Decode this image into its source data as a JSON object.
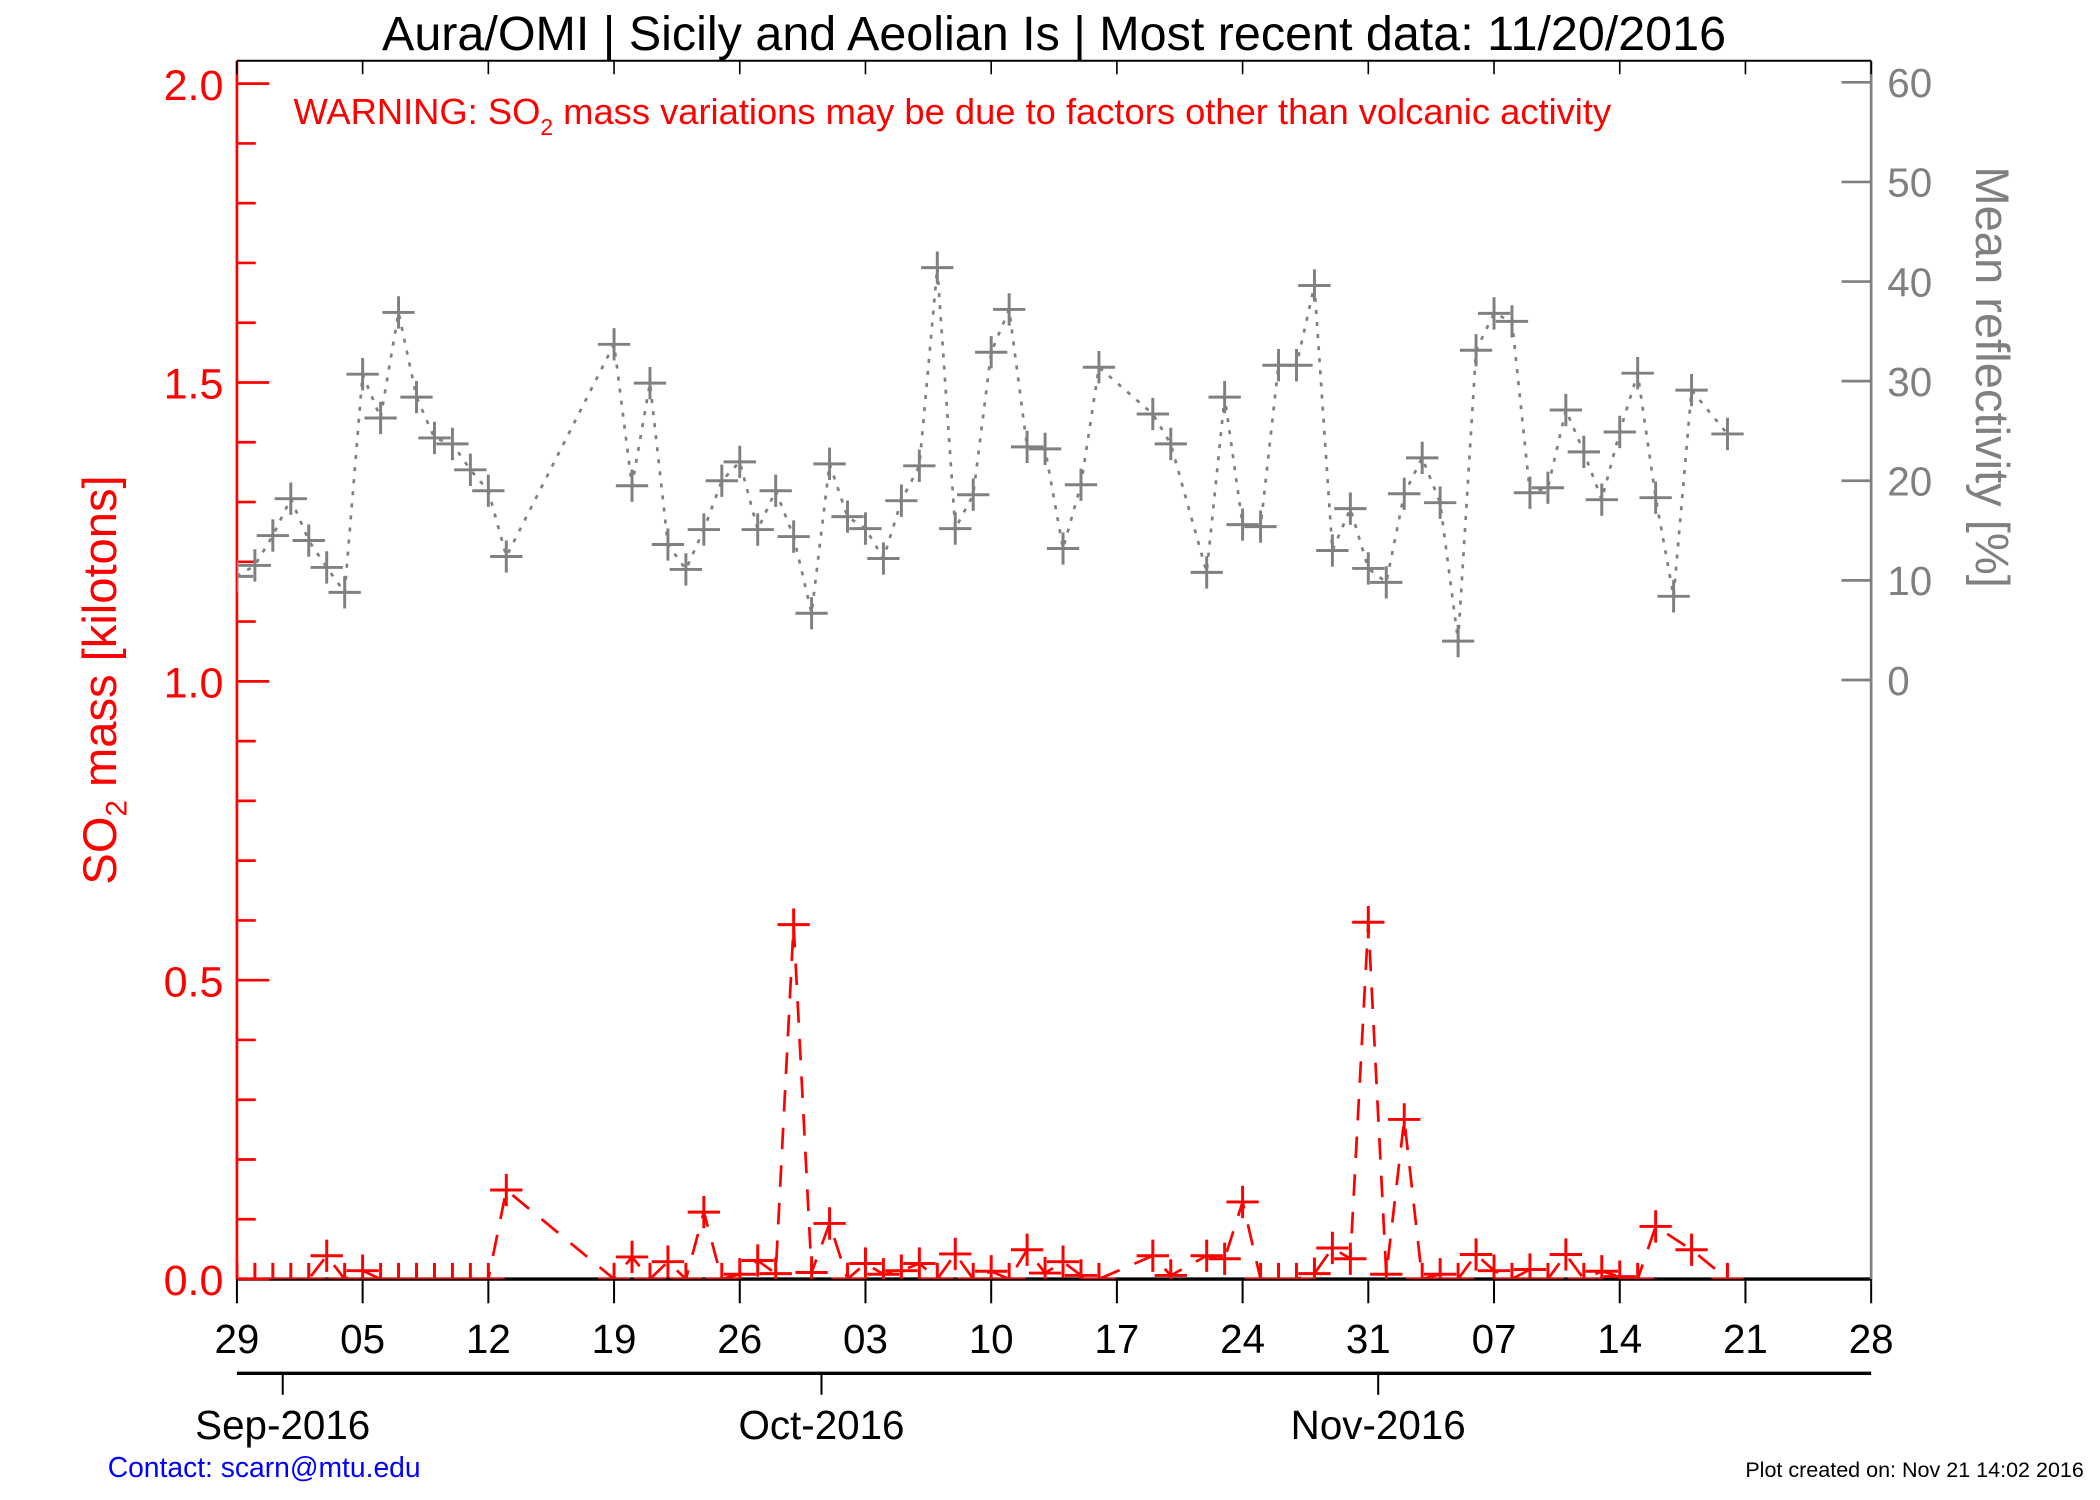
{
  "chart_data": {
    "type": "line",
    "title": "Aura/OMI | Sicily and Aeolian Is | Most recent data: 11/20/2016",
    "warning": {
      "prefix": "WARNING: SO",
      "sub": "2",
      "suffix": " mass variations may be due to factors other than volcanic activity"
    },
    "ylabel_left": {
      "prefix": "SO",
      "sub": "2",
      "suffix": " mass [kilotons]"
    },
    "ylabel_right": "Mean reflectivity [%]",
    "xlim": [
      "2016-08-29",
      "2016-11-28"
    ],
    "ylim_left": [
      0,
      2.0
    ],
    "ylim_right": [
      0,
      60
    ],
    "left_ticks": [
      "0.0",
      "0.5",
      "1.0",
      "1.5",
      "2.0"
    ],
    "left_tick_values": [
      0,
      0.5,
      1.0,
      1.5,
      2.0
    ],
    "right_ticks": [
      "0",
      "10",
      "20",
      "30",
      "40",
      "50",
      "60"
    ],
    "right_tick_values": [
      0,
      10,
      20,
      30,
      40,
      50,
      60
    ],
    "x_ticks": [
      {
        "date": "2016-08-29",
        "label": "29"
      },
      {
        "date": "2016-09-05",
        "label": "05"
      },
      {
        "date": "2016-09-12",
        "label": "12"
      },
      {
        "date": "2016-09-19",
        "label": "19"
      },
      {
        "date": "2016-09-26",
        "label": "26"
      },
      {
        "date": "2016-10-03",
        "label": "03"
      },
      {
        "date": "2016-10-10",
        "label": "10"
      },
      {
        "date": "2016-10-17",
        "label": "17"
      },
      {
        "date": "2016-10-24",
        "label": "24"
      },
      {
        "date": "2016-10-31",
        "label": "31"
      },
      {
        "date": "2016-11-07",
        "label": "07"
      },
      {
        "date": "2016-11-14",
        "label": "14"
      },
      {
        "date": "2016-11-21",
        "label": "21"
      },
      {
        "date": "2016-11-28",
        "label": "28"
      }
    ],
    "month_ticks": [
      {
        "date": "2016-09-01",
        "label": "Sep-2016"
      },
      {
        "date": "2016-10-01",
        "label": "Oct-2016"
      },
      {
        "date": "2016-11-01",
        "label": "Nov-2016"
      }
    ],
    "series": [
      {
        "name": "SO2 mass [kilotons]",
        "axis": "left",
        "color": "#ff0000",
        "line": "dashed",
        "marker": "plus",
        "points": [
          [
            "2016-08-29",
            0
          ],
          [
            "2016-08-30",
            0
          ],
          [
            "2016-08-31",
            0
          ],
          [
            "2016-09-01",
            0
          ],
          [
            "2016-09-02",
            0
          ],
          [
            "2016-09-03",
            0.039
          ],
          [
            "2016-09-04",
            0
          ],
          [
            "2016-09-05",
            0.014
          ],
          [
            "2016-09-06",
            0
          ],
          [
            "2016-09-07",
            0
          ],
          [
            "2016-09-08",
            0
          ],
          [
            "2016-09-09",
            0
          ],
          [
            "2016-09-10",
            0
          ],
          [
            "2016-09-11",
            0
          ],
          [
            "2016-09-12",
            0
          ],
          [
            "2016-09-13",
            0.149
          ],
          [
            "2016-09-19",
            0
          ],
          [
            "2016-09-20",
            0.037
          ],
          [
            "2016-09-21",
            0
          ],
          [
            "2016-09-22",
            0.029
          ],
          [
            "2016-09-23",
            0
          ],
          [
            "2016-09-24",
            0.112
          ],
          [
            "2016-09-25",
            0
          ],
          [
            "2016-09-26",
            0.008
          ],
          [
            "2016-09-27",
            0.031
          ],
          [
            "2016-09-28",
            0.009
          ],
          [
            "2016-09-29",
            0.593
          ],
          [
            "2016-09-30",
            0.011
          ],
          [
            "2016-10-01",
            0.093
          ],
          [
            "2016-10-02",
            0
          ],
          [
            "2016-10-03",
            0.026
          ],
          [
            "2016-10-04",
            0.008
          ],
          [
            "2016-10-05",
            0.014
          ],
          [
            "2016-10-06",
            0.026
          ],
          [
            "2016-10-07",
            0
          ],
          [
            "2016-10-08",
            0.042
          ],
          [
            "2016-10-09",
            0
          ],
          [
            "2016-10-10",
            0.013
          ],
          [
            "2016-10-11",
            0
          ],
          [
            "2016-10-12",
            0.049
          ],
          [
            "2016-10-13",
            0.01
          ],
          [
            "2016-10-14",
            0.029
          ],
          [
            "2016-10-15",
            0.006
          ],
          [
            "2016-10-16",
            0
          ],
          [
            "2016-10-19",
            0.039
          ],
          [
            "2016-10-20",
            0.006
          ],
          [
            "2016-10-22",
            0.039
          ],
          [
            "2016-10-23",
            0.034
          ],
          [
            "2016-10-24",
            0.129
          ],
          [
            "2016-10-25",
            0
          ],
          [
            "2016-10-26",
            0
          ],
          [
            "2016-10-27",
            0
          ],
          [
            "2016-10-28",
            0.009
          ],
          [
            "2016-10-29",
            0.052
          ],
          [
            "2016-10-30",
            0.034
          ],
          [
            "2016-10-31",
            0.597
          ],
          [
            "2016-11-01",
            0.008
          ],
          [
            "2016-11-02",
            0.267
          ],
          [
            "2016-11-03",
            0
          ],
          [
            "2016-11-04",
            0.008
          ],
          [
            "2016-11-05",
            0
          ],
          [
            "2016-11-06",
            0.041
          ],
          [
            "2016-11-07",
            0.014
          ],
          [
            "2016-11-08",
            0
          ],
          [
            "2016-11-09",
            0.016
          ],
          [
            "2016-11-10",
            0
          ],
          [
            "2016-11-11",
            0.041
          ],
          [
            "2016-11-12",
            0
          ],
          [
            "2016-11-13",
            0.013
          ],
          [
            "2016-11-14",
            0.004
          ],
          [
            "2016-11-15",
            0
          ],
          [
            "2016-11-16",
            0.088
          ],
          [
            "2016-11-18",
            0.049
          ],
          [
            "2016-11-20",
            0
          ]
        ]
      },
      {
        "name": "Mean reflectivity [%]",
        "axis": "right",
        "color": "#808080",
        "line": "dotted",
        "marker": "plus",
        "points": [
          [
            "2016-08-29",
            10.4
          ],
          [
            "2016-08-30",
            11.5
          ],
          [
            "2016-08-31",
            14.5
          ],
          [
            "2016-09-01",
            18.2
          ],
          [
            "2016-09-02",
            14.0
          ],
          [
            "2016-09-03",
            11.3
          ],
          [
            "2016-09-04",
            8.8
          ],
          [
            "2016-09-05",
            30.7
          ],
          [
            "2016-09-06",
            26.3
          ],
          [
            "2016-09-07",
            36.9
          ],
          [
            "2016-09-08",
            28.4
          ],
          [
            "2016-09-09",
            24.3
          ],
          [
            "2016-09-10",
            23.7
          ],
          [
            "2016-09-11",
            21.1
          ],
          [
            "2016-09-12",
            19.0
          ],
          [
            "2016-09-13",
            12.4
          ],
          [
            "2016-09-19",
            33.7
          ],
          [
            "2016-09-20",
            19.5
          ],
          [
            "2016-09-21",
            29.8
          ],
          [
            "2016-09-22",
            13.6
          ],
          [
            "2016-09-23",
            11.1
          ],
          [
            "2016-09-24",
            15.1
          ],
          [
            "2016-09-25",
            20.0
          ],
          [
            "2016-09-26",
            21.9
          ],
          [
            "2016-09-27",
            15.1
          ],
          [
            "2016-09-28",
            19.0
          ],
          [
            "2016-09-29",
            14.4
          ],
          [
            "2016-09-30",
            6.7
          ],
          [
            "2016-10-01",
            21.7
          ],
          [
            "2016-10-02",
            16.4
          ],
          [
            "2016-10-03",
            15.2
          ],
          [
            "2016-10-04",
            12.2
          ],
          [
            "2016-10-05",
            18.0
          ],
          [
            "2016-10-06",
            21.5
          ],
          [
            "2016-10-07",
            41.4
          ],
          [
            "2016-10-08",
            15.2
          ],
          [
            "2016-10-09",
            18.6
          ],
          [
            "2016-10-10",
            32.9
          ],
          [
            "2016-10-11",
            37.2
          ],
          [
            "2016-10-12",
            23.4
          ],
          [
            "2016-10-13",
            23.2
          ],
          [
            "2016-10-14",
            13.2
          ],
          [
            "2016-10-15",
            19.6
          ],
          [
            "2016-10-16",
            31.4
          ],
          [
            "2016-10-19",
            26.7
          ],
          [
            "2016-10-20",
            23.7
          ],
          [
            "2016-10-22",
            10.8
          ],
          [
            "2016-10-23",
            28.4
          ],
          [
            "2016-10-24",
            15.6
          ],
          [
            "2016-10-25",
            15.4
          ],
          [
            "2016-10-26",
            31.6
          ],
          [
            "2016-10-27",
            31.6
          ],
          [
            "2016-10-28",
            39.6
          ],
          [
            "2016-10-29",
            13.0
          ],
          [
            "2016-10-30",
            17.2
          ],
          [
            "2016-10-31",
            11.2
          ],
          [
            "2016-11-01",
            9.8
          ],
          [
            "2016-11-02",
            18.7
          ],
          [
            "2016-11-03",
            22.3
          ],
          [
            "2016-11-04",
            17.8
          ],
          [
            "2016-11-05",
            3.9
          ],
          [
            "2016-11-06",
            33.1
          ],
          [
            "2016-11-07",
            36.8
          ],
          [
            "2016-11-08",
            36.0
          ],
          [
            "2016-11-09",
            18.8
          ],
          [
            "2016-11-10",
            19.3
          ],
          [
            "2016-11-11",
            27.1
          ],
          [
            "2016-11-12",
            22.9
          ],
          [
            "2016-11-13",
            18.1
          ],
          [
            "2016-11-14",
            24.9
          ],
          [
            "2016-11-15",
            30.8
          ],
          [
            "2016-11-16",
            18.3
          ],
          [
            "2016-11-17",
            8.4
          ],
          [
            "2016-11-18",
            29.1
          ],
          [
            "2016-11-20",
            24.7
          ]
        ]
      }
    ]
  },
  "footer": {
    "contact": "Contact: scarn@mtu.edu",
    "created": "Plot created on: Nov 21 14:02 2016"
  },
  "colors": {
    "so2": "#ff0000",
    "reflectivity": "#808080",
    "contact": "#0000ff",
    "axis": "#000000"
  }
}
